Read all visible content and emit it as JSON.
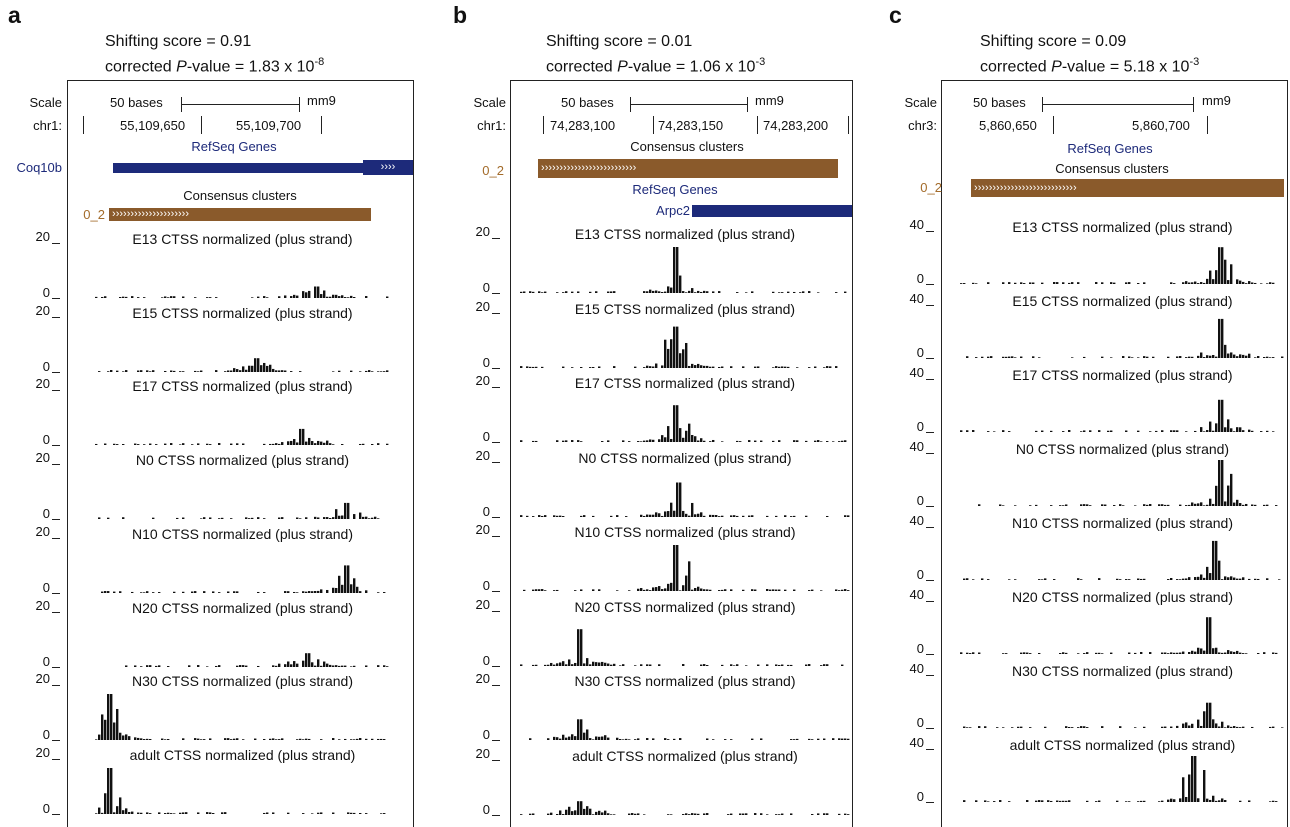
{
  "panels": [
    {
      "letter": "a",
      "shift": "Shifting score = 0.91",
      "pval_prefix": "corrected ",
      "pval_p": "P",
      "pval_mid": "-value = 1.83 x 10",
      "pval_exp": "-8",
      "scale": "Scale",
      "chrom": "chr1:",
      "bases": "50 bases",
      "assembly": "mm9",
      "pos1": "55,109,650",
      "pos2": "55,109,700",
      "refseq": "RefSeq Genes",
      "gene": "Coq10b",
      "consensus": "Consensus clusters",
      "cluster_label": "0_2",
      "ymax": "20",
      "ymin": "0",
      "tracks": [
        "E13 CTSS normalized (plus strand)",
        "E15 CTSS normalized (plus strand)",
        "E17 CTSS normalized (plus strand)",
        "N0 CTSS normalized (plus strand)",
        "N10 CTSS normalized (plus strand)",
        "N20 CTSS normalized (plus strand)",
        "N30 CTSS normalized (plus strand)",
        "adult CTSS normalized (plus strand)"
      ]
    },
    {
      "letter": "b",
      "shift": "Shifting score = 0.01",
      "pval_prefix": "corrected ",
      "pval_p": "P",
      "pval_mid": "-value = 1.06 x 10",
      "pval_exp": "-3",
      "scale": "Scale",
      "chrom": "chr1:",
      "bases": "50 bases",
      "assembly": "mm9",
      "pos1": "74,283,100",
      "pos2": "74,283,150",
      "pos3": "74,283,200",
      "refseq": "RefSeq Genes",
      "gene": "Arpc2",
      "consensus": "Consensus clusters",
      "cluster_label": "0_2",
      "ymax": "20",
      "ymin": "0",
      "tracks": [
        "E13 CTSS normalized (plus strand)",
        "E15 CTSS normalized (plus strand)",
        "E17 CTSS normalized (plus strand)",
        "N0 CTSS normalized (plus strand)",
        "N10 CTSS normalized (plus strand)",
        "N20 CTSS normalized (plus strand)",
        "N30 CTSS normalized (plus strand)",
        "adult CTSS normalized (plus strand)"
      ]
    },
    {
      "letter": "c",
      "shift": "Shifting score = 0.09",
      "pval_prefix": "corrected ",
      "pval_p": "P",
      "pval_mid": "-value = 5.18 x 10",
      "pval_exp": "-3",
      "scale": "Scale",
      "chrom": "chr3:",
      "bases": "50 bases",
      "assembly": "mm9",
      "pos1": "5,860,650",
      "pos2": "5,860,700",
      "refseq": "RefSeq Genes",
      "consensus": "Consensus clusters",
      "cluster_label": "0_2",
      "ymax": "40",
      "ymin": "0",
      "tracks": [
        "E13 CTSS normalized (plus strand)",
        "E15 CTSS normalized (plus strand)",
        "E17 CTSS normalized (plus strand)",
        "N0 CTSS normalized (plus strand)",
        "N10 CTSS normalized (plus strand)",
        "N20 CTSS normalized (plus strand)",
        "N30 CTSS normalized (plus strand)",
        "adult CTSS normalized (plus strand)"
      ]
    }
  ],
  "colors": {
    "gene": "#1d2a7a",
    "cluster": "#8a5a2b",
    "signal": "#111111"
  }
}
